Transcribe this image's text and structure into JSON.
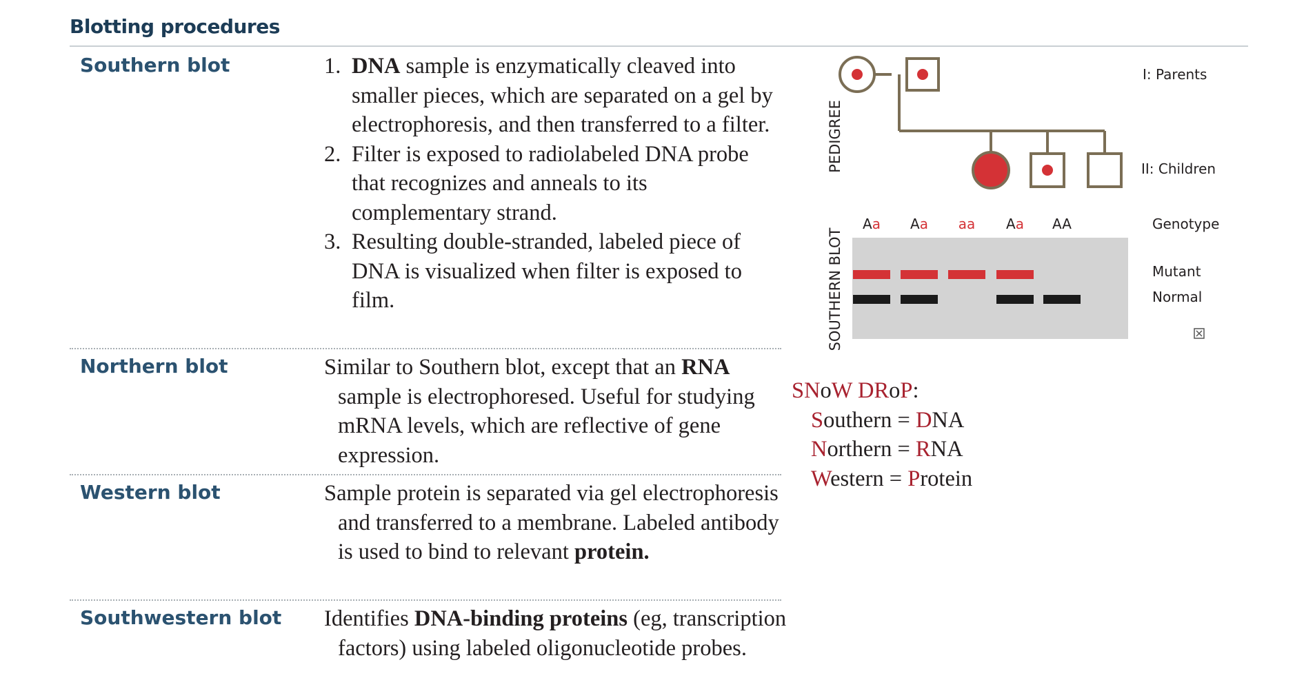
{
  "header": {
    "title": "Blotting procedures"
  },
  "rows": [
    {
      "term": "Southern blot",
      "steps": [
        {
          "num": "1.",
          "bold": "DNA",
          "text": " sample is enzymatically cleaved into smaller pieces, which are separated on a gel by electrophoresis, and then transferred to a filter."
        },
        {
          "num": "2.",
          "text": "Filter is exposed to radiolabeled DNA probe that recognizes and anneals to its complementary strand."
        },
        {
          "num": "3.",
          "text": "Resulting double-stranded, labeled piece of DNA is visualized when filter is exposed to film."
        }
      ]
    },
    {
      "term": "Northern blot",
      "pre": "Similar to Southern blot, except that an ",
      "bold": "RNA",
      "post": " sample is electrophoresed. Useful for studying mRNA levels, which are reflective of gene expression."
    },
    {
      "term": "Western blot",
      "pre": "Sample protein is separated via gel electrophoresis and transferred to a membrane. Labeled antibody is used to bind to relevant ",
      "bold": "protein."
    },
    {
      "term": "Southwestern blot",
      "pre": "Identifies ",
      "bold": "DNA-binding proteins",
      "post": " (eg, transcription factors) using labeled oligonucleotide probes."
    }
  ],
  "figure": {
    "pedigree_label": "PEDIGREE",
    "southern_label": "SOUTHERN BLOT",
    "gen1_label": "I: Parents",
    "gen2_label": "II: Children",
    "genotype_header": "Genotype",
    "genotypes": [
      {
        "first": "A",
        "second": "a",
        "second_mutant": true,
        "first_mutant": false
      },
      {
        "first": "A",
        "second": "a",
        "second_mutant": true,
        "first_mutant": false
      },
      {
        "first": "a",
        "second": "a",
        "second_mutant": true,
        "first_mutant": true
      },
      {
        "first": "A",
        "second": "a",
        "second_mutant": true,
        "first_mutant": false
      },
      {
        "first": "A",
        "second": "A",
        "second_mutant": false,
        "first_mutant": false
      }
    ],
    "mutant_label": "Mutant",
    "normal_label": "Normal",
    "lanes": [
      {
        "mutant": true,
        "normal": true
      },
      {
        "mutant": true,
        "normal": true
      },
      {
        "mutant": true,
        "normal": false
      },
      {
        "mutant": true,
        "normal": true
      },
      {
        "mutant": false,
        "normal": true
      }
    ],
    "colors": {
      "mutant": "#d43236",
      "normal": "#1a1a1a",
      "gel": "#d3d3d3",
      "line": "#7b6e55"
    }
  },
  "mnemonic": {
    "heading": {
      "a": "SN",
      "b": "o",
      "c": "W DR",
      "d": "o",
      "e": "P",
      "f": ":"
    },
    "lines": [
      {
        "i1": "S",
        "r1": "outhern = ",
        "i2": "D",
        "r2": "NA"
      },
      {
        "i1": "N",
        "r1": "orthern = ",
        "i2": "R",
        "r2": "NA"
      },
      {
        "i1": "W",
        "r1": "estern = ",
        "i2": "P",
        "r2": "rotein"
      }
    ]
  }
}
